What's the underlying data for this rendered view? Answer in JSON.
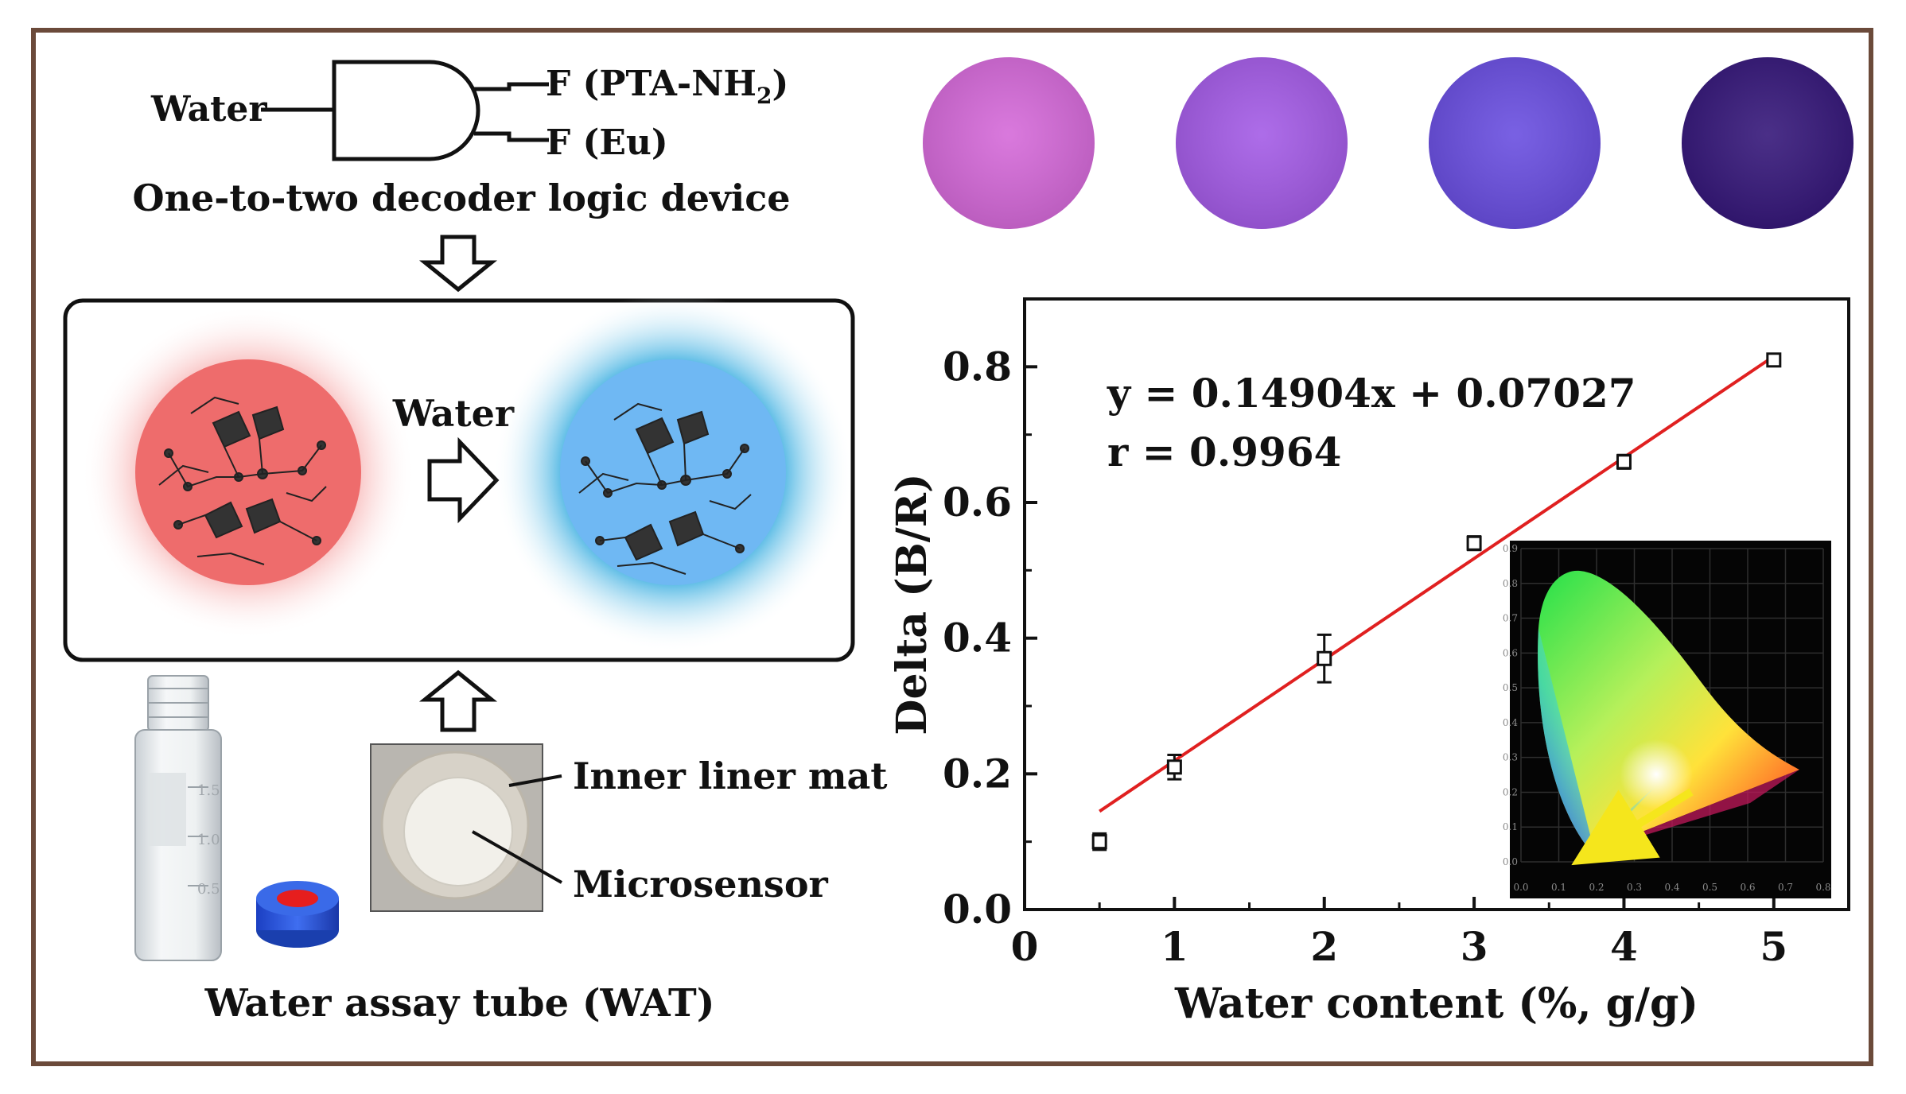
{
  "logic_device": {
    "input": "Water",
    "output_1": "F (PTA-NH",
    "output_1_sub": "2",
    "output_1_close": ")",
    "output_2": "F (Eu)",
    "caption": "One-to-two decoder logic device"
  },
  "transition_label": "Water",
  "mof_states": [
    {
      "glow_color": "#f07b7b",
      "core_color": "#f06a6a"
    },
    {
      "glow_color": "#27a8dc",
      "core_color": "#6ab7f2"
    }
  ],
  "colorimetric_spots": [
    "#d56ad9",
    "#a45ce6",
    "#6a4fe0",
    "#36187a"
  ],
  "device": {
    "inner_liner_label": "Inner liner mat",
    "microsensor_label": "Microsensor",
    "tube_caption": "Water assay tube (WAT)",
    "vial_marks": [
      "1.5",
      "1.0",
      "0.5"
    ]
  },
  "chart_data": {
    "type": "scatter",
    "xlabel": "Water content (%, g/g)",
    "ylabel": "Delta (B/R)",
    "xlim": [
      0,
      5.5
    ],
    "ylim": [
      0,
      0.9
    ],
    "x_ticks": [
      "0",
      "1",
      "2",
      "3",
      "4",
      "5"
    ],
    "y_ticks": [
      "0.0",
      "0.2",
      "0.4",
      "0.6",
      "0.8"
    ],
    "points": [
      {
        "x": 0.5,
        "y": 0.1,
        "err": 0.012
      },
      {
        "x": 1.0,
        "y": 0.21,
        "err": 0.018
      },
      {
        "x": 2.0,
        "y": 0.37,
        "err": 0.035
      },
      {
        "x": 3.0,
        "y": 0.54,
        "err": 0.01
      },
      {
        "x": 4.0,
        "y": 0.66,
        "err": 0.01
      },
      {
        "x": 5.0,
        "y": 0.81,
        "err": 0.008
      }
    ],
    "fit": {
      "slope": 0.14904,
      "intercept": 0.07027,
      "x_range": [
        0.5,
        5.0
      ],
      "color": "#e02020"
    },
    "equation": "y = 0.14904x + 0.07027",
    "r_value": "r = 0.9964",
    "inset": {
      "type": "CIE chromaticity diagram",
      "x_ticks": [
        "0.0",
        "0.1",
        "0.2",
        "0.3",
        "0.4",
        "0.5",
        "0.6",
        "0.7",
        "0.8"
      ],
      "y_ticks": [
        "0.0",
        "0.1",
        "0.2",
        "0.3",
        "0.4",
        "0.5",
        "0.6",
        "0.7",
        "0.8",
        "0.9"
      ],
      "arrow_color": "#f5e61c"
    }
  }
}
